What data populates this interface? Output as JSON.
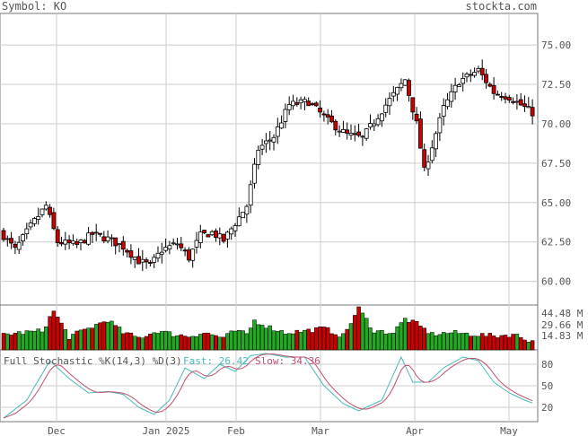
{
  "header": {
    "symbol_label": "Symbol: KO",
    "brand": "stockta.com"
  },
  "chart_data": {
    "type": "candlestick",
    "price_axis": {
      "ticks": [
        "75.00",
        "72.50",
        "70.00",
        "67.50",
        "65.00",
        "62.50",
        "60.00"
      ],
      "ylim": [
        58.5,
        77.0
      ]
    },
    "volume_axis": {
      "ticks": [
        "44.48 M",
        "29.66 M",
        "14.83 M"
      ],
      "max": 50
    },
    "stoch_axis": {
      "ticks": [
        "80",
        "50",
        "20"
      ],
      "ylim": [
        0,
        100
      ]
    },
    "x_labels": [
      "Dec",
      "Jan 2025",
      "Feb",
      "Mar",
      "Apr",
      "May"
    ],
    "stochastic": {
      "title": "Full Stochastic %K(14,3) %D(3)",
      "fast_label": "Fast: 26.42",
      "slow_label": "Slow: 34.36"
    },
    "colors": {
      "up": "#ffffff",
      "down": "#cc0000",
      "vol_up": "#22aa22",
      "vol_down": "#cc0000",
      "fast": "#4bb9b9",
      "slow": "#c05070",
      "grid": "#cccccc"
    },
    "anchors": [
      [
        0,
        62.9
      ],
      [
        3,
        62.0
      ],
      [
        7,
        63.5
      ],
      [
        11,
        64.8
      ],
      [
        14,
        62.5
      ],
      [
        19,
        62.3
      ],
      [
        23,
        63.0
      ],
      [
        27,
        62.7
      ],
      [
        31,
        62.2
      ],
      [
        35,
        61.3
      ],
      [
        38,
        61.0
      ],
      [
        41,
        62.0
      ],
      [
        45,
        62.4
      ],
      [
        48,
        61.5
      ],
      [
        51,
        62.9
      ],
      [
        54,
        63.1
      ],
      [
        57,
        62.6
      ],
      [
        60,
        63.7
      ],
      [
        63,
        64.8
      ],
      [
        66,
        68.4
      ],
      [
        70,
        69.2
      ],
      [
        74,
        71.2
      ],
      [
        79,
        71.4
      ],
      [
        84,
        70.2
      ],
      [
        89,
        69.3
      ],
      [
        93,
        69.1
      ],
      [
        99,
        71.2
      ],
      [
        104,
        72.8
      ],
      [
        107,
        70.0
      ],
      [
        109,
        67.0
      ],
      [
        114,
        71.0
      ],
      [
        118,
        72.7
      ],
      [
        123,
        73.4
      ],
      [
        127,
        72.0
      ],
      [
        131,
        71.7
      ],
      [
        137,
        70.7
      ]
    ],
    "volume_anchors": [
      [
        0,
        18
      ],
      [
        10,
        22
      ],
      [
        13,
        45
      ],
      [
        17,
        15
      ],
      [
        22,
        25
      ],
      [
        27,
        35
      ],
      [
        31,
        20
      ],
      [
        35,
        14
      ],
      [
        40,
        22
      ],
      [
        44,
        18
      ],
      [
        48,
        16
      ],
      [
        52,
        20
      ],
      [
        57,
        14
      ],
      [
        60,
        22
      ],
      [
        63,
        18
      ],
      [
        65,
        34
      ],
      [
        69,
        26
      ],
      [
        73,
        20
      ],
      [
        78,
        22
      ],
      [
        83,
        25
      ],
      [
        88,
        16
      ],
      [
        92,
        48
      ],
      [
        96,
        22
      ],
      [
        101,
        20
      ],
      [
        104,
        36
      ],
      [
        107,
        30
      ],
      [
        111,
        18
      ],
      [
        116,
        20
      ],
      [
        122,
        18
      ],
      [
        127,
        16
      ],
      [
        132,
        18
      ],
      [
        137,
        10
      ]
    ],
    "stoch_anchors": [
      [
        0,
        5
      ],
      [
        6,
        30
      ],
      [
        12,
        85
      ],
      [
        17,
        60
      ],
      [
        22,
        40
      ],
      [
        27,
        42
      ],
      [
        31,
        38
      ],
      [
        35,
        20
      ],
      [
        39,
        10
      ],
      [
        43,
        30
      ],
      [
        47,
        75
      ],
      [
        52,
        60
      ],
      [
        56,
        80
      ],
      [
        60,
        70
      ],
      [
        64,
        92
      ],
      [
        68,
        95
      ],
      [
        73,
        90
      ],
      [
        78,
        90
      ],
      [
        83,
        50
      ],
      [
        88,
        25
      ],
      [
        92,
        15
      ],
      [
        98,
        30
      ],
      [
        103,
        90
      ],
      [
        106,
        55
      ],
      [
        110,
        55
      ],
      [
        114,
        75
      ],
      [
        119,
        90
      ],
      [
        123,
        85
      ],
      [
        127,
        55
      ],
      [
        131,
        40
      ],
      [
        135,
        30
      ],
      [
        137,
        26
      ]
    ]
  }
}
